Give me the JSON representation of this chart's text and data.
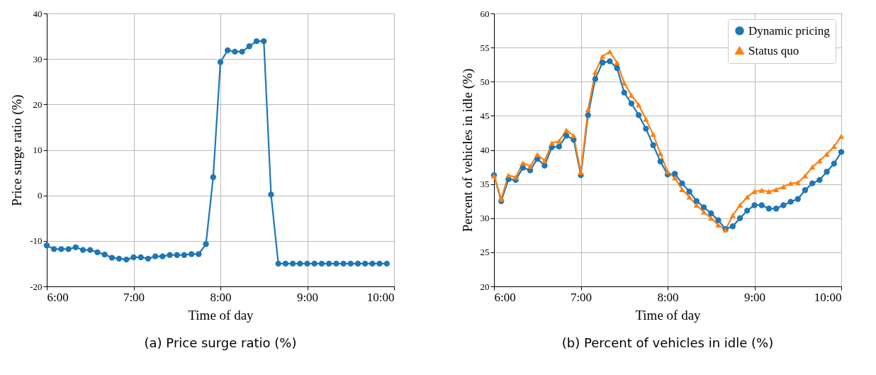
{
  "chart_data": [
    {
      "type": "line",
      "title": "(a) Price surge ratio (%)",
      "xlabel": "Time of day",
      "ylabel": "Price surge ratio (%)",
      "xlim": [
        6,
        10
      ],
      "xticks": [
        {
          "value": 6,
          "label": "6:00"
        },
        {
          "value": 7,
          "label": "7:00"
        },
        {
          "value": 8,
          "label": "8:00"
        },
        {
          "value": 9,
          "label": "9:00"
        },
        {
          "value": 10,
          "label": "10:00"
        }
      ],
      "ylim": [
        -20,
        40
      ],
      "yticks": [
        -20,
        -10,
        0,
        10,
        20,
        30,
        40
      ],
      "grid": true,
      "marker": "circle",
      "x": [
        6,
        6.0833,
        6.1667,
        6.25,
        6.3333,
        6.4167,
        6.5,
        6.5833,
        6.6667,
        6.75,
        6.8333,
        6.9167,
        7,
        7.0833,
        7.1667,
        7.25,
        7.3333,
        7.4167,
        7.5,
        7.5833,
        7.6667,
        7.75,
        7.8333,
        7.9167,
        8,
        8.0833,
        8.1667,
        8.25,
        8.3333,
        8.4167,
        8.5,
        8.5833,
        8.6667,
        8.75,
        8.8333,
        8.9167,
        9,
        9.0833,
        9.1667,
        9.25,
        9.3333,
        9.4167,
        9.5,
        9.5833,
        9.6667,
        9.75,
        9.8333,
        9.9167
      ],
      "series": [
        {
          "color": "#1f77b4",
          "values": [
            -11,
            -11.8,
            -11.8,
            -11.8,
            -11.4,
            -12,
            -12,
            -12.5,
            -13,
            -13.7,
            -13.9,
            -14.1,
            -13.6,
            -13.6,
            -13.9,
            -13.4,
            -13.4,
            -13.1,
            -13.1,
            -13.1,
            -12.9,
            -12.9,
            -10.7,
            4,
            29.3,
            31.9,
            31.6,
            31.6,
            32.8,
            33.9,
            33.9,
            0.2,
            -15,
            -15,
            -15,
            -15,
            -15,
            -15,
            -15,
            -15,
            -15,
            -15,
            -15,
            -15,
            -15,
            -15,
            -15,
            -15
          ]
        }
      ]
    },
    {
      "type": "line",
      "title": "(b) Percent of vehicles in idle (%)",
      "xlabel": "Time of day",
      "ylabel": "Percent of vehicles in idle (%)",
      "xlim": [
        6,
        10
      ],
      "xticks": [
        {
          "value": 6,
          "label": "6:00"
        },
        {
          "value": 7,
          "label": "7:00"
        },
        {
          "value": 8,
          "label": "8:00"
        },
        {
          "value": 9,
          "label": "9:00"
        },
        {
          "value": 10,
          "label": "10:00"
        }
      ],
      "ylim": [
        20,
        60
      ],
      "yticks": [
        20,
        25,
        30,
        35,
        40,
        45,
        50,
        55,
        60
      ],
      "grid": true,
      "legend": "top right",
      "x": [
        6,
        6.0833,
        6.1667,
        6.25,
        6.3333,
        6.4167,
        6.5,
        6.5833,
        6.6667,
        6.75,
        6.8333,
        6.9167,
        7,
        7.0833,
        7.1667,
        7.25,
        7.3333,
        7.4167,
        7.5,
        7.5833,
        7.6667,
        7.75,
        7.8333,
        7.9167,
        8,
        8.0833,
        8.1667,
        8.25,
        8.3333,
        8.4167,
        8.5,
        8.5833,
        8.6667,
        8.75,
        8.8333,
        8.9167,
        9,
        9.0833,
        9.1667,
        9.25,
        9.3333,
        9.4167,
        9.5,
        9.5833,
        9.6667,
        9.75,
        9.8333,
        9.9167,
        10
      ],
      "series": [
        {
          "name": "Dynamic pricing",
          "color": "#1f77b4",
          "marker": "circle",
          "values": [
            36.3,
            32.5,
            35.7,
            35.6,
            37.4,
            37,
            38.7,
            37.7,
            40.4,
            40.5,
            42.1,
            41.5,
            36.3,
            45.1,
            50.4,
            52.8,
            53,
            52,
            48.4,
            46.8,
            45.1,
            43.1,
            40.7,
            38.3,
            36.4,
            36.5,
            35.1,
            33.9,
            32.5,
            31.6,
            30.7,
            29.7,
            28.4,
            28.8,
            30,
            31.1,
            31.9,
            31.9,
            31.4,
            31.4,
            31.9,
            32.4,
            32.8,
            34.1,
            35.1,
            35.6,
            36.8,
            38,
            39.7
          ]
        },
        {
          "name": "Status quo",
          "color": "#ff7f0e",
          "marker": "triangle",
          "values": [
            36.2,
            32.8,
            36.3,
            36,
            38.1,
            37.6,
            39.3,
            38.4,
            41,
            41.3,
            42.9,
            42.1,
            36.7,
            45.9,
            51.4,
            53.7,
            54.4,
            52.8,
            49.8,
            48,
            46.6,
            44.5,
            42.3,
            39.5,
            36.8,
            35.9,
            34.2,
            33.1,
            31.9,
            30.9,
            30,
            29,
            28.3,
            30.4,
            31.9,
            33.1,
            33.9,
            34.1,
            33.9,
            34.2,
            34.6,
            35.1,
            35.2,
            36.2,
            37.5,
            38.4,
            39.4,
            40.5,
            42
          ]
        }
      ]
    }
  ]
}
